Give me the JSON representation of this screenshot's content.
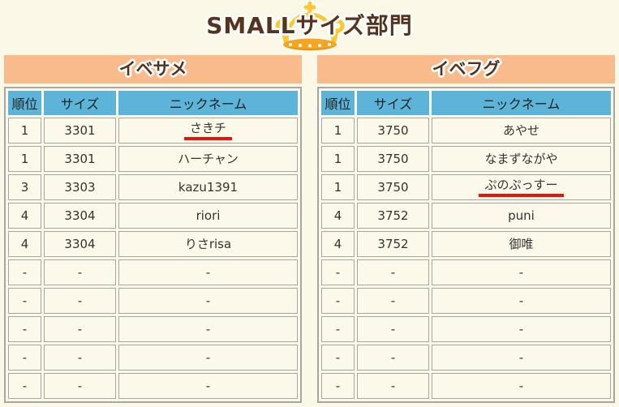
{
  "page": {
    "title": "SMALLサイズ部門"
  },
  "colors": {
    "page_bg": "#FCF8E7",
    "panel_orange": "#F9BA8C",
    "header_blue": "#5CB5D9",
    "title_brown": "#56331C",
    "underline_red": "#E8140C",
    "crown_gold": "#FFC72E",
    "crown_band": "#F5A623",
    "crown_band_shadow": "#E89314",
    "cell_bg": "#FDF9EA",
    "border_gray": "#A6A6A6"
  },
  "tables": [
    {
      "title": "イベサメ",
      "columns": {
        "rank": "順位",
        "size": "サイズ",
        "nickname": "ニックネーム"
      },
      "rows": [
        {
          "rank": "1",
          "size": "3301",
          "nickname": "さきチ",
          "highlight": true
        },
        {
          "rank": "1",
          "size": "3301",
          "nickname": "ハーチャン",
          "highlight": false
        },
        {
          "rank": "3",
          "size": "3303",
          "nickname": "kazu1391",
          "highlight": false
        },
        {
          "rank": "4",
          "size": "3304",
          "nickname": "riori",
          "highlight": false
        },
        {
          "rank": "4",
          "size": "3304",
          "nickname": "りさrisa",
          "highlight": false
        },
        {
          "rank": "-",
          "size": "-",
          "nickname": "-",
          "highlight": false
        },
        {
          "rank": "-",
          "size": "-",
          "nickname": "-",
          "highlight": false
        },
        {
          "rank": "-",
          "size": "-",
          "nickname": "-",
          "highlight": false
        },
        {
          "rank": "-",
          "size": "-",
          "nickname": "-",
          "highlight": false
        },
        {
          "rank": "-",
          "size": "-",
          "nickname": "-",
          "highlight": false
        }
      ]
    },
    {
      "title": "イベフグ",
      "columns": {
        "rank": "順位",
        "size": "サイズ",
        "nickname": "ニックネーム"
      },
      "rows": [
        {
          "rank": "1",
          "size": "3750",
          "nickname": "あやせ",
          "highlight": false
        },
        {
          "rank": "1",
          "size": "3750",
          "nickname": "なまずながや",
          "highlight": false
        },
        {
          "rank": "1",
          "size": "3750",
          "nickname": "ぷのぷっすー",
          "highlight": true
        },
        {
          "rank": "4",
          "size": "3752",
          "nickname": "puni",
          "highlight": false
        },
        {
          "rank": "4",
          "size": "3752",
          "nickname": "御唯",
          "highlight": false
        },
        {
          "rank": "-",
          "size": "-",
          "nickname": "-",
          "highlight": false
        },
        {
          "rank": "-",
          "size": "-",
          "nickname": "-",
          "highlight": false
        },
        {
          "rank": "-",
          "size": "-",
          "nickname": "-",
          "highlight": false
        },
        {
          "rank": "-",
          "size": "-",
          "nickname": "-",
          "highlight": false
        },
        {
          "rank": "-",
          "size": "-",
          "nickname": "-",
          "highlight": false
        }
      ]
    }
  ]
}
